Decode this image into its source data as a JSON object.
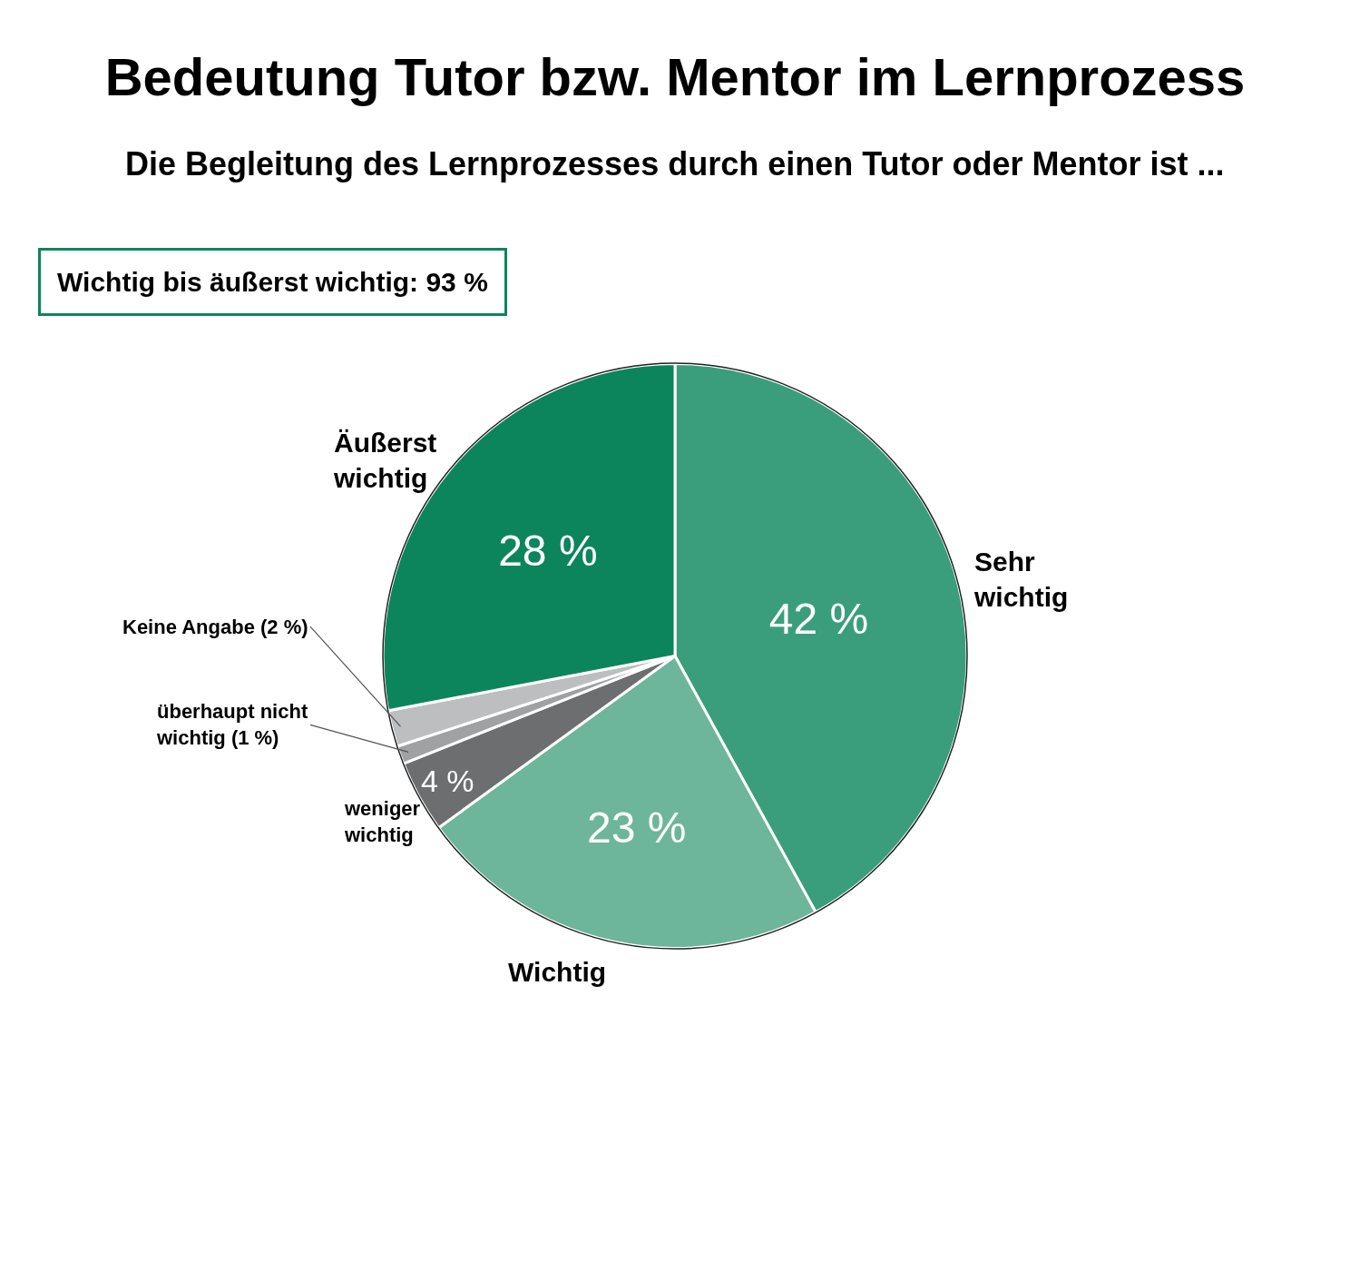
{
  "chart_data": {
    "type": "pie",
    "title": "Bedeutung Tutor bzw. Mentor im Lernprozess",
    "subtitle": "Die Begleitung des Lernprozesses durch einen Tutor oder Mentor ist ...",
    "categories": [
      "Sehr\nwichtig",
      "Wichtig",
      "weniger\nwichtig",
      "überhaupt nicht\nwichtig (1 %)",
      "Keine Angabe (2 %)",
      "Äußerst\nwichtig"
    ],
    "values": [
      42,
      23,
      4,
      1,
      2,
      28
    ],
    "value_labels": [
      "42 %",
      "23 %",
      "4 %",
      null,
      null,
      "28 %"
    ],
    "colors": [
      "#3a9e7c",
      "#6db59b",
      "#6d6e70",
      "#a0a1a3",
      "#bdbec0",
      "#0c855c"
    ],
    "annotations": [
      "Wichtig bis äußerst wichtig: 93 %"
    ],
    "legend": false
  }
}
